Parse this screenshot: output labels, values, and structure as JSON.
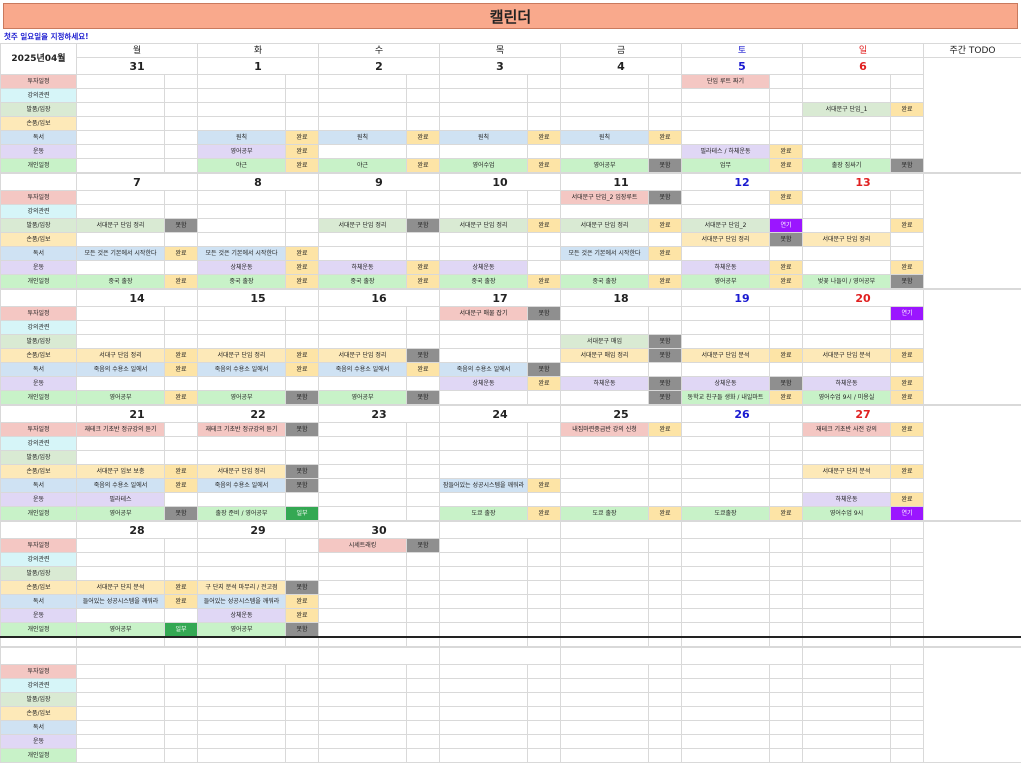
{
  "title": "캘린더",
  "note": "첫주 일요일을 지정하세요!",
  "month_label": "2025년04월",
  "todo_header": "주간 TODO",
  "weekdays": [
    "월",
    "화",
    "수",
    "목",
    "금",
    "토",
    "일"
  ],
  "colors": {
    "title_bg": "#f9a98c",
    "saturday": "#1a1ad0",
    "sunday": "#e02020",
    "done": "#fde4a6",
    "notdone": "#8f8f8f",
    "partial": "#34a853",
    "postponed": "#9b16ff"
  },
  "categories": [
    {
      "label": "투자일정",
      "color": "#f4c7c3"
    },
    {
      "label": "강의관련",
      "color": "#d6f5f8"
    },
    {
      "label": "발품/임장",
      "color": "#d9ead3"
    },
    {
      "label": "손품/임보",
      "color": "#fde9b8"
    },
    {
      "label": "독서",
      "color": "#cfe2f3"
    },
    {
      "label": "운동",
      "color": "#e0d7f5"
    },
    {
      "label": "개인일정",
      "color": "#c8f2c8"
    }
  ],
  "weeks": [
    {
      "days": [
        "31",
        "1",
        "2",
        "3",
        "4",
        "5",
        "6"
      ],
      "rows": [
        [
          null,
          null,
          null,
          null,
          null,
          [
            "단임 루트 짜기",
            null
          ],
          null
        ],
        [
          null,
          null,
          null,
          null,
          null,
          null,
          null
        ],
        [
          null,
          null,
          null,
          null,
          null,
          null,
          [
            "서대문구 단임_1",
            "완료"
          ]
        ],
        [
          null,
          null,
          null,
          null,
          null,
          null,
          null
        ],
        [
          null,
          [
            "원칙",
            "완료"
          ],
          [
            "원칙",
            "완료"
          ],
          [
            "원칙",
            "완료"
          ],
          [
            "원칙",
            "완료"
          ],
          null,
          null
        ],
        [
          null,
          [
            "영어공부",
            "완료"
          ],
          null,
          null,
          null,
          [
            "필라테스 / 하체운동",
            "완료"
          ],
          null
        ],
        [
          null,
          [
            "야근",
            "완료"
          ],
          [
            "야근",
            "완료"
          ],
          [
            "영어수업",
            "완료"
          ],
          [
            "영어공부",
            "못함"
          ],
          [
            "업무",
            "완료"
          ],
          [
            "출장 짐싸기",
            "못함"
          ]
        ]
      ]
    },
    {
      "days": [
        "7",
        "8",
        "9",
        "10",
        "11",
        "12",
        "13"
      ],
      "rows": [
        [
          null,
          null,
          null,
          null,
          [
            "서대문구 단임_2 임장루트",
            "못함"
          ],
          [
            null,
            "완료"
          ],
          null
        ],
        [
          null,
          null,
          null,
          null,
          null,
          null,
          null
        ],
        [
          [
            "서대문구 단임 정리",
            "못함"
          ],
          null,
          [
            "서대문구 단임 정리",
            "못함"
          ],
          [
            "서대문구 단임 정리",
            "완료"
          ],
          [
            "서대문구 단임 정리",
            "완료"
          ],
          [
            "서대문구 단임_2",
            "연기"
          ],
          [
            null,
            "완료"
          ]
        ],
        [
          null,
          null,
          null,
          null,
          null,
          [
            "서대문구 단임 정리",
            "못함"
          ],
          [
            "서대문구 단임 정리",
            null
          ]
        ],
        [
          [
            "모든 것은 기본에서 시작한다",
            "완료"
          ],
          [
            "모든 것은 기본에서 시작한다",
            "완료"
          ],
          null,
          null,
          [
            "모든 것은 기본에서 시작한다",
            "완료"
          ],
          null,
          null
        ],
        [
          null,
          [
            "상체운동",
            "완료"
          ],
          [
            "하체운동",
            "완료"
          ],
          [
            "상체운동",
            null
          ],
          null,
          [
            "하체운동",
            "완료"
          ],
          [
            null,
            "완료"
          ]
        ],
        [
          [
            "중국 출장",
            "완료"
          ],
          [
            "중국 출장",
            "완료"
          ],
          [
            "중국 출장",
            "완료"
          ],
          [
            "중국 출장",
            "완료"
          ],
          [
            "중국 출장",
            "완료"
          ],
          [
            "영어공부",
            "완료"
          ],
          [
            "벚꽃 나들이 / 영어공부",
            "못함"
          ]
        ]
      ]
    },
    {
      "days": [
        "14",
        "15",
        "16",
        "17",
        "18",
        "19",
        "20"
      ],
      "rows": [
        [
          null,
          null,
          null,
          [
            "서대문구 매물 잡기",
            "못함"
          ],
          null,
          null,
          [
            null,
            "연기"
          ]
        ],
        [
          null,
          null,
          null,
          null,
          null,
          null,
          null
        ],
        [
          null,
          null,
          null,
          null,
          [
            "서대문구 매임",
            "못함"
          ],
          null,
          null
        ],
        [
          [
            "서대구 단임 정리",
            "완료"
          ],
          [
            "서대문구 단임 정리",
            "완료"
          ],
          [
            "서대문구 단임 정리",
            "못함"
          ],
          null,
          [
            "서대문구 매임 정리",
            "못함"
          ],
          [
            "서대문구 단임 분석",
            "완료"
          ],
          [
            "서대문구 단임 분석",
            "완료"
          ]
        ],
        [
          [
            "죽음의 수용소 일에서",
            "완료"
          ],
          [
            "죽음의 수용소 일에서",
            "완료"
          ],
          [
            "죽음의 수용소 일에서",
            "완료"
          ],
          [
            "죽음의 수용소 일에서",
            "못함"
          ],
          null,
          null,
          null
        ],
        [
          null,
          null,
          null,
          [
            "상체운동",
            "완료"
          ],
          [
            "하체운동",
            "못함"
          ],
          [
            "상체운동",
            "못함"
          ],
          [
            "하체운동",
            "완료"
          ]
        ],
        [
          [
            "영어공부",
            "완료"
          ],
          [
            "영어공부",
            "못함"
          ],
          [
            "영어공부",
            "못함"
          ],
          null,
          [
            null,
            "못함"
          ],
          [
            "동학교 친구들 생화 / 내일마트",
            "완료"
          ],
          [
            "영어수업 9시 / 미용실",
            "완료"
          ]
        ]
      ]
    },
    {
      "days": [
        "21",
        "22",
        "23",
        "24",
        "25",
        "26",
        "27"
      ],
      "rows": [
        [
          [
            "재테크 기초반 정규강의 듣기",
            null
          ],
          [
            "재테크 기초반 정규강의 듣기",
            "못함"
          ],
          null,
          null,
          [
            "내집마련중급반 강의 신청",
            "완료"
          ],
          null,
          [
            "재테크 기초반 사전 강의",
            "완료"
          ]
        ],
        [
          null,
          null,
          null,
          null,
          null,
          null,
          null
        ],
        [
          null,
          null,
          null,
          null,
          null,
          null,
          null
        ],
        [
          [
            "서대문구 임보 보충",
            "완료"
          ],
          [
            "서대문구 단임 정리",
            "못함"
          ],
          null,
          null,
          null,
          null,
          [
            "서대문구 단지 분석",
            "완료"
          ]
        ],
        [
          [
            "죽음의 수용소 일에서",
            "완료"
          ],
          [
            "죽음의 수용소 일에서",
            "못함"
          ],
          null,
          [
            "잠들어있는 성공시스템을 깨워라",
            "완료"
          ],
          null,
          null,
          null
        ],
        [
          [
            "필라테스",
            null
          ],
          null,
          null,
          null,
          null,
          null,
          [
            "하체운동",
            "완료"
          ]
        ],
        [
          [
            "영어공부",
            "못함"
          ],
          [
            "출장 준비 / 영어공부",
            "일부"
          ],
          null,
          [
            "도쿄 출장",
            "완료"
          ],
          [
            "도쿄 출장",
            "완료"
          ],
          [
            "도쿄출장",
            "완료"
          ],
          [
            "영어수업 9시",
            "연기"
          ]
        ]
      ]
    },
    {
      "days": [
        "28",
        "29",
        "30",
        "",
        "",
        "",
        ""
      ],
      "rows": [
        [
          null,
          null,
          [
            "시세트래킹",
            "못함"
          ],
          null,
          null,
          null,
          null
        ],
        [
          null,
          null,
          null,
          null,
          null,
          null,
          null
        ],
        [
          null,
          null,
          null,
          null,
          null,
          null,
          null
        ],
        [
          [
            "서대문구 단지 분석",
            "완료"
          ],
          [
            "구 단지 분석 마무리 / 전고점",
            "못함"
          ],
          null,
          null,
          null,
          null,
          null
        ],
        [
          [
            "들어있는 성공시스템을 깨워라",
            "완료"
          ],
          [
            "들어있는 성공시스템을 깨워라",
            "완료"
          ],
          null,
          null,
          null,
          null,
          null
        ],
        [
          null,
          [
            "상체운동",
            "완료"
          ],
          null,
          null,
          null,
          null,
          null
        ],
        [
          [
            "영어공부",
            "일부"
          ],
          [
            "영어공부",
            "못함"
          ],
          null,
          null,
          null,
          null,
          null
        ]
      ]
    },
    {
      "days": [
        "",
        "",
        "",
        "",
        "",
        "",
        ""
      ],
      "rows": [
        [
          null,
          null,
          null,
          null,
          null,
          null,
          null
        ],
        [
          null,
          null,
          null,
          null,
          null,
          null,
          null
        ],
        [
          null,
          null,
          null,
          null,
          null,
          null,
          null
        ],
        [
          null,
          null,
          null,
          null,
          null,
          null,
          null
        ],
        [
          null,
          null,
          null,
          null,
          null,
          null,
          null
        ],
        [
          null,
          null,
          null,
          null,
          null,
          null,
          null
        ],
        [
          null,
          null,
          null,
          null,
          null,
          null,
          null
        ]
      ]
    }
  ]
}
